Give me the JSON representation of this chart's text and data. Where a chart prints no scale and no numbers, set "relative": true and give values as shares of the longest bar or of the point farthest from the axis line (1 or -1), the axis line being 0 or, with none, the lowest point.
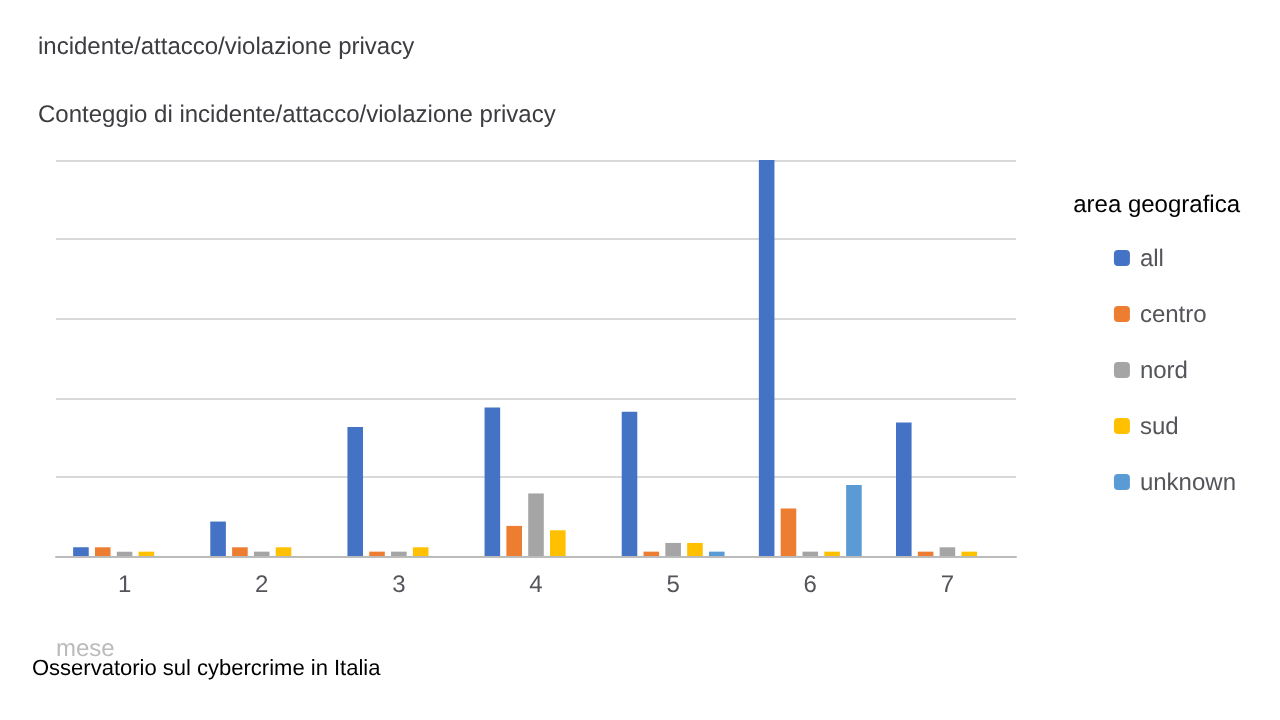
{
  "chart_data": {
    "type": "bar",
    "title": "incidente/attacco/violazione privacy",
    "subtitle": "Conteggio di incidente/attacco/violazione privacy",
    "xlabel": "mese",
    "legend_title": "area geografica",
    "categories": [
      "1",
      "2",
      "3",
      "4",
      "5",
      "6",
      "7"
    ],
    "relative": true,
    "grid": "y",
    "legend": "right",
    "series": [
      {
        "name": "all",
        "color": "#4472c4",
        "values": [
          0.022,
          0.087,
          0.326,
          0.375,
          0.364,
          1,
          0.337
        ]
      },
      {
        "name": "centro",
        "color": "#ed7d31",
        "values": [
          0.022,
          0.022,
          0.011,
          0.076,
          0.011,
          0.12,
          0.011
        ]
      },
      {
        "name": "nord",
        "color": "#a5a5a5",
        "values": [
          0.011,
          0.011,
          0.011,
          0.158,
          0.033,
          0.011,
          0.022
        ]
      },
      {
        "name": "sud",
        "color": "#ffc000",
        "values": [
          0.011,
          0.022,
          0.022,
          0.065,
          0.033,
          0.011,
          0.011
        ]
      },
      {
        "name": "unknown",
        "color": "#5b9bd5",
        "values": [
          null,
          null,
          null,
          null,
          0.011,
          0.179,
          null
        ]
      }
    ],
    "annotations": [
      "Osservatorio sul cybercrime in Italia"
    ]
  }
}
